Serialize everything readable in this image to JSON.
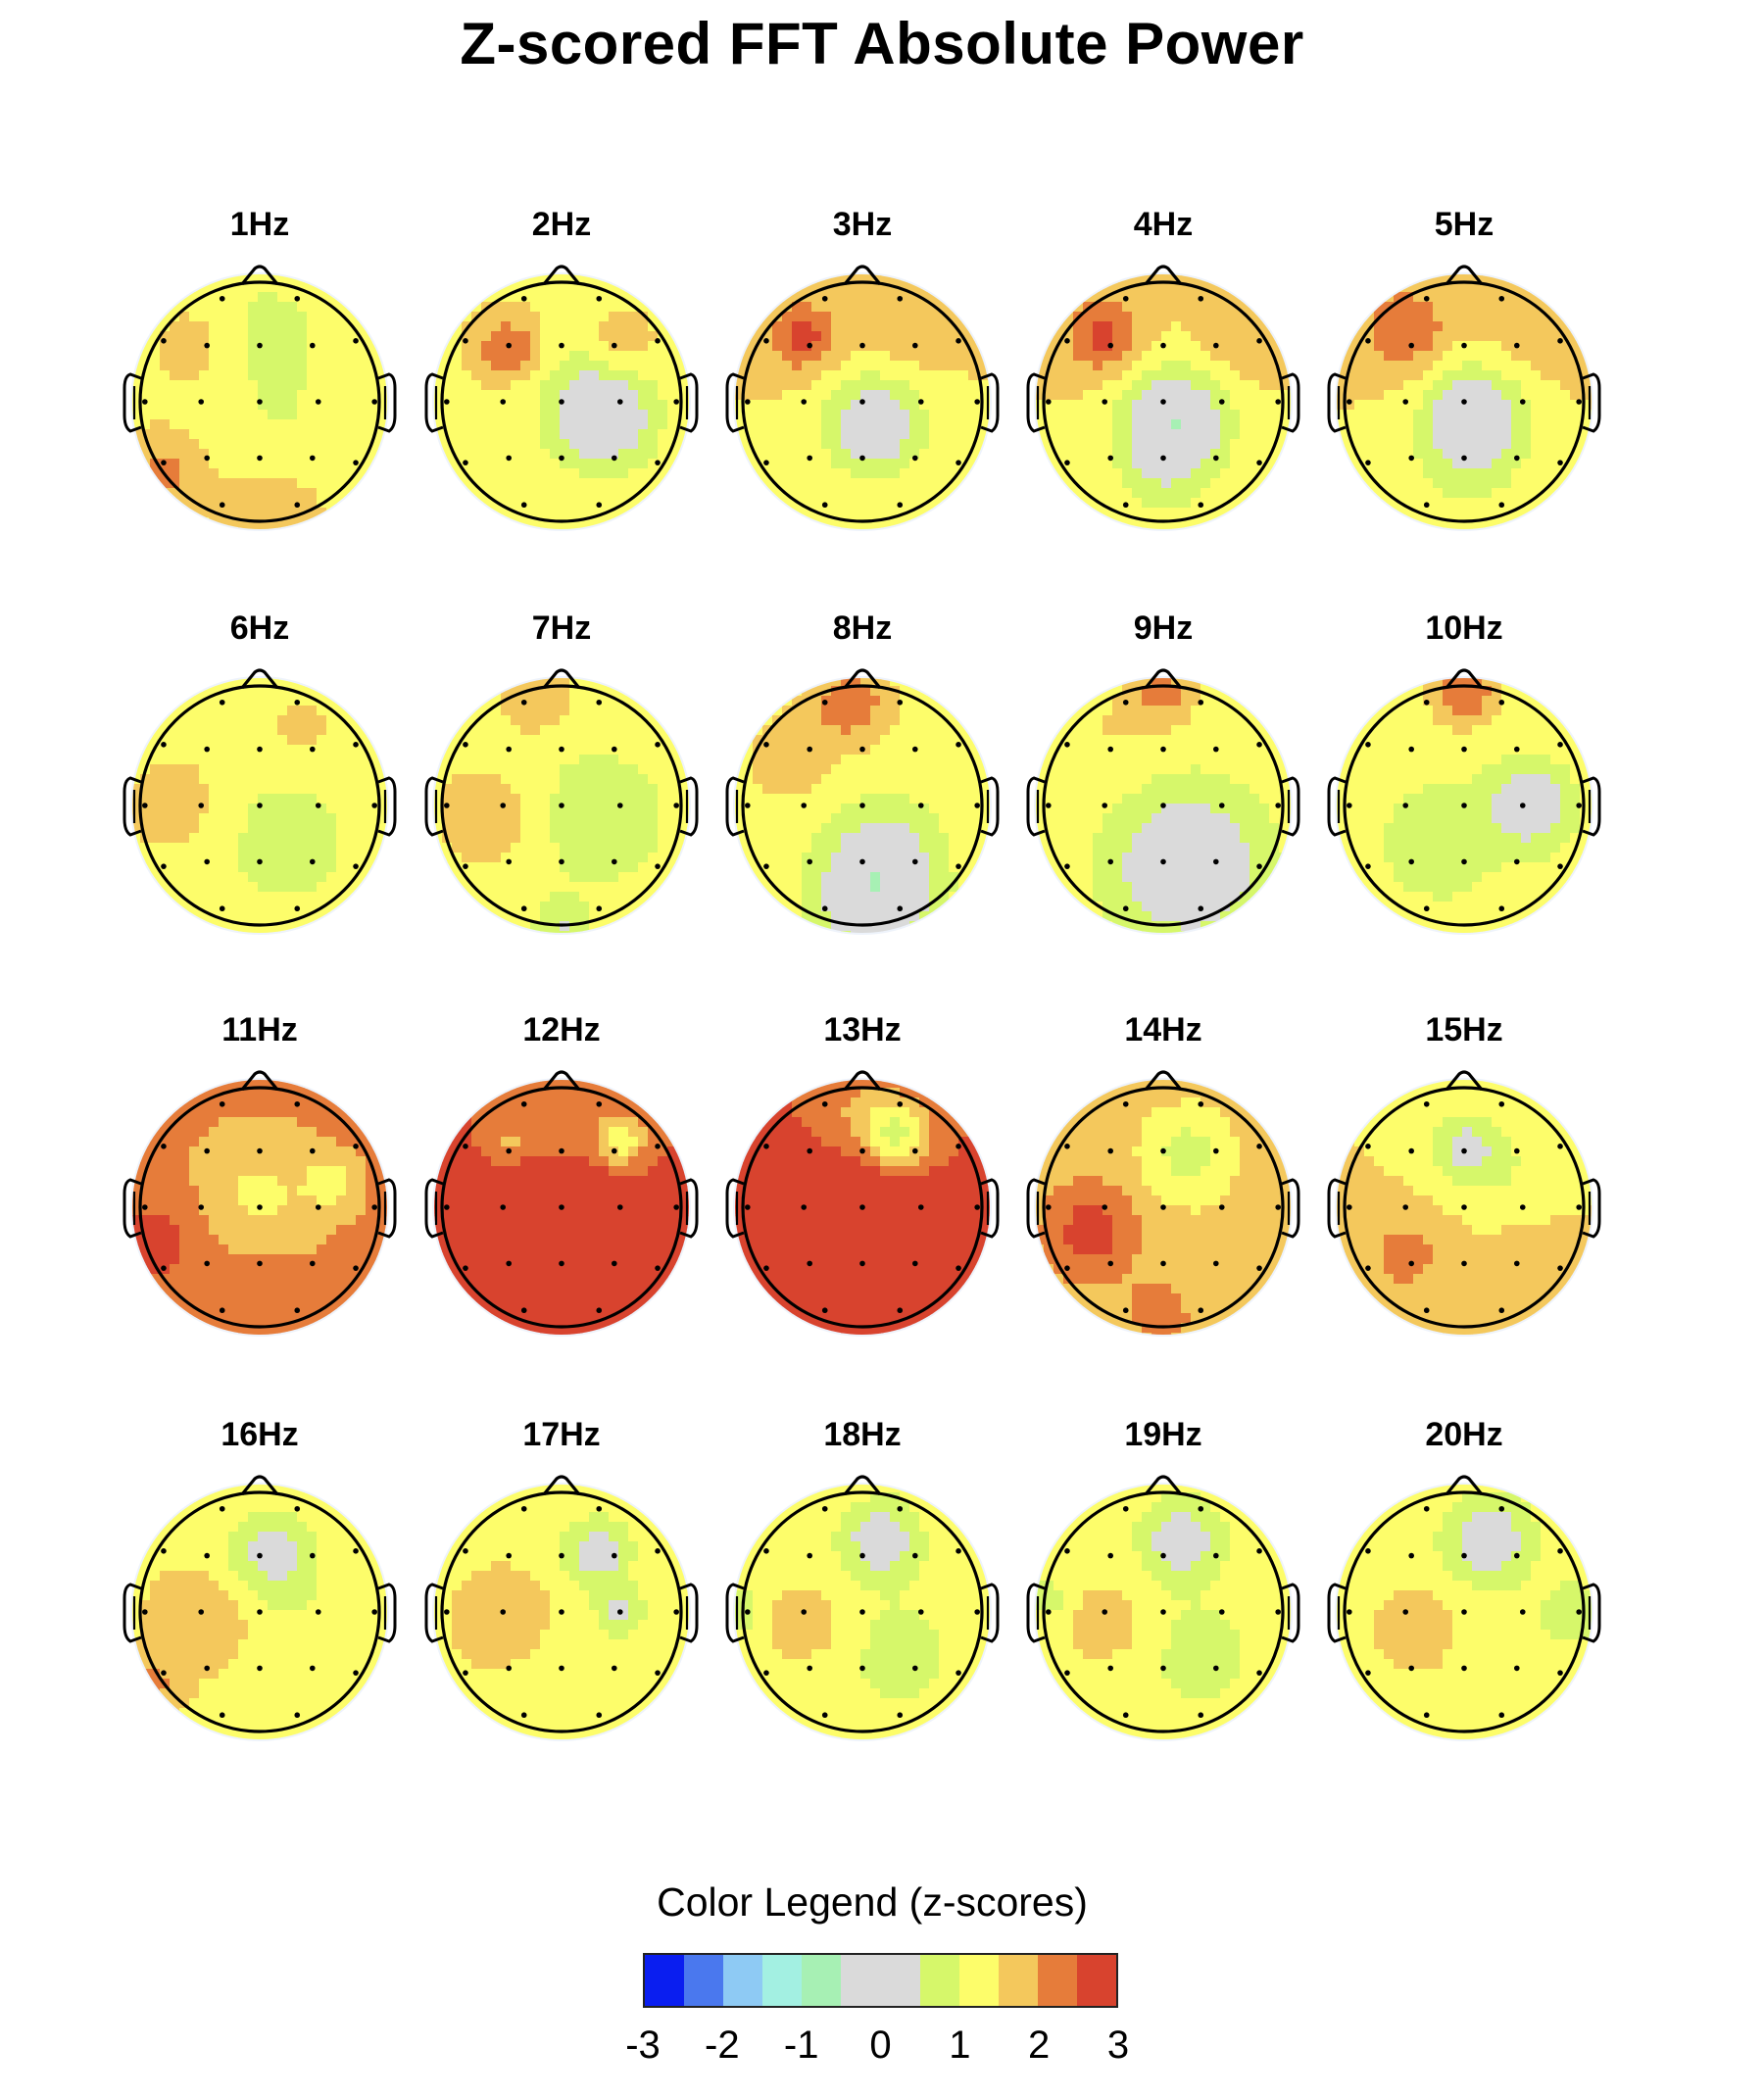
{
  "title": "Z-scored FFT Absolute Power",
  "chart_data": {
    "type": "heatmap",
    "title": "Z-scored FFT Absolute Power",
    "maps": [
      {
        "label": "1Hz"
      },
      {
        "label": "2Hz"
      },
      {
        "label": "3Hz"
      },
      {
        "label": "4Hz"
      },
      {
        "label": "5Hz"
      },
      {
        "label": "6Hz"
      },
      {
        "label": "7Hz"
      },
      {
        "label": "8Hz"
      },
      {
        "label": "9Hz"
      },
      {
        "label": "10Hz"
      },
      {
        "label": "11Hz"
      },
      {
        "label": "12Hz"
      },
      {
        "label": "13Hz"
      },
      {
        "label": "14Hz"
      },
      {
        "label": "15Hz"
      },
      {
        "label": "16Hz"
      },
      {
        "label": "17Hz"
      },
      {
        "label": "18Hz"
      },
      {
        "label": "19Hz"
      },
      {
        "label": "20Hz"
      }
    ],
    "legend": {
      "title": "Color Legend (z-scores)",
      "ticks": [
        "-3",
        "-2",
        "-1",
        "0",
        "1",
        "2",
        "3"
      ],
      "range": [
        -3,
        3
      ],
      "colors": [
        "#0a1ef0",
        "#4a78ee",
        "#8ecaf4",
        "#a3f0e2",
        "#a7f0b4",
        "#dadada",
        "#dadada",
        "#d6f76a",
        "#fdfd6a",
        "#f4c85c",
        "#e67c3a",
        "#d8432e"
      ]
    }
  }
}
